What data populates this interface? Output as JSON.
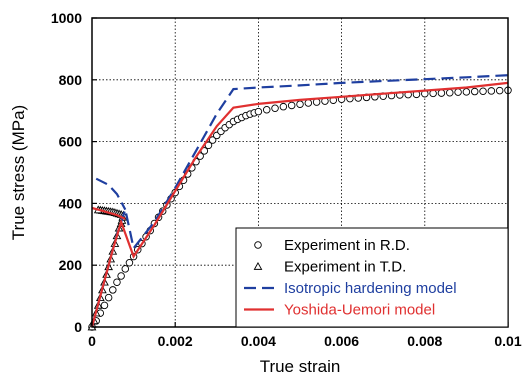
{
  "chart_data": {
    "type": "line",
    "xlabel": "True strain",
    "ylabel": "True stress (MPa)",
    "xlim": [
      0,
      0.01
    ],
    "ylim": [
      0,
      1000
    ],
    "xticks": [
      "0",
      "0.002",
      "0.004",
      "0.006",
      "0.008",
      "0.01"
    ],
    "yticks": [
      "0",
      "200",
      "400",
      "600",
      "800",
      "1000"
    ],
    "grid": "dotted",
    "legend_position": "bottom-right",
    "series": [
      {
        "name": "Experiment in R.D.",
        "style": "circle-markers",
        "color": "#000000",
        "points": [
          [
            0,
            0
          ],
          [
            0.0001,
            20
          ],
          [
            0.0002,
            45
          ],
          [
            0.0003,
            70
          ],
          [
            0.0004,
            95
          ],
          [
            0.0005,
            120
          ],
          [
            0.0006,
            145
          ],
          [
            0.0007,
            165
          ],
          [
            0.0008,
            188
          ],
          [
            0.0009,
            208
          ],
          [
            0.001,
            228
          ],
          [
            0.0011,
            250
          ],
          [
            0.0012,
            270
          ],
          [
            0.0013,
            292
          ],
          [
            0.0014,
            312
          ],
          [
            0.0015,
            335
          ],
          [
            0.0016,
            355
          ],
          [
            0.0017,
            375
          ],
          [
            0.0018,
            395
          ],
          [
            0.0019,
            415
          ],
          [
            0.002,
            435
          ],
          [
            0.0021,
            455
          ],
          [
            0.0022,
            475
          ],
          [
            0.0023,
            495
          ],
          [
            0.0024,
            515
          ],
          [
            0.0025,
            535
          ],
          [
            0.0026,
            553
          ],
          [
            0.0027,
            570
          ],
          [
            0.0028,
            588
          ],
          [
            0.0029,
            605
          ],
          [
            0.003,
            620
          ],
          [
            0.0031,
            633
          ],
          [
            0.0032,
            645
          ],
          [
            0.0033,
            655
          ],
          [
            0.0034,
            665
          ],
          [
            0.0035,
            672
          ],
          [
            0.0036,
            678
          ],
          [
            0.0037,
            684
          ],
          [
            0.0038,
            689
          ],
          [
            0.0039,
            693
          ],
          [
            0.004,
            697
          ],
          [
            0.0042,
            703
          ],
          [
            0.0044,
            708
          ],
          [
            0.0046,
            713
          ],
          [
            0.0048,
            717
          ],
          [
            0.005,
            721
          ],
          [
            0.0052,
            725
          ],
          [
            0.0054,
            728
          ],
          [
            0.0056,
            731
          ],
          [
            0.0058,
            734
          ],
          [
            0.006,
            737
          ],
          [
            0.0062,
            739
          ],
          [
            0.0064,
            741
          ],
          [
            0.0066,
            743
          ],
          [
            0.0068,
            745
          ],
          [
            0.007,
            747
          ],
          [
            0.0072,
            749
          ],
          [
            0.0074,
            751
          ],
          [
            0.0076,
            752
          ],
          [
            0.0078,
            753
          ],
          [
            0.008,
            755
          ],
          [
            0.0082,
            756
          ],
          [
            0.0084,
            757
          ],
          [
            0.0086,
            758
          ],
          [
            0.0088,
            760
          ],
          [
            0.009,
            761
          ],
          [
            0.0092,
            762
          ],
          [
            0.0094,
            763
          ],
          [
            0.0096,
            764
          ],
          [
            0.0098,
            765
          ],
          [
            0.01,
            766
          ]
        ]
      },
      {
        "name": "Experiment in T.D.",
        "style": "triangle-markers",
        "color": "#000000",
        "points": [
          [
            0,
            0
          ],
          [
            5e-05,
            20
          ],
          [
            0.0001,
            45
          ],
          [
            0.00015,
            70
          ],
          [
            0.0002,
            95
          ],
          [
            0.00025,
            120
          ],
          [
            0.0003,
            145
          ],
          [
            0.00035,
            170
          ],
          [
            0.0004,
            195
          ],
          [
            0.00045,
            220
          ],
          [
            0.0005,
            245
          ],
          [
            0.00055,
            270
          ],
          [
            0.0006,
            295
          ],
          [
            0.00065,
            320
          ],
          [
            0.0007,
            335
          ],
          [
            0.00072,
            345
          ],
          [
            0.00074,
            355
          ],
          [
            0.00076,
            362
          ],
          [
            0.0007,
            364
          ],
          [
            0.00065,
            366
          ],
          [
            0.0006,
            368
          ],
          [
            0.00055,
            370
          ],
          [
            0.0005,
            372
          ],
          [
            0.00045,
            373
          ],
          [
            0.0004,
            374
          ],
          [
            0.00035,
            375
          ],
          [
            0.0003,
            376
          ],
          [
            0.00025,
            377
          ],
          [
            0.0002,
            378
          ],
          [
            0.00015,
            379
          ]
        ]
      },
      {
        "name": "Isotropic hardening model",
        "style": "dashed",
        "color": "#1f3fa0",
        "points": [
          [
            0,
            0
          ],
          [
            0.0003,
            150
          ],
          [
            0.0006,
            300
          ],
          [
            0.0008,
            380
          ],
          [
            0.001,
            255
          ],
          [
            0.0015,
            340
          ],
          [
            0.002,
            450
          ],
          [
            0.0025,
            570
          ],
          [
            0.003,
            690
          ],
          [
            0.0034,
            770
          ],
          [
            0.004,
            775
          ],
          [
            0.005,
            782
          ],
          [
            0.006,
            790
          ],
          [
            0.007,
            796
          ],
          [
            0.008,
            802
          ],
          [
            0.009,
            808
          ],
          [
            0.01,
            815
          ]
        ],
        "reverse_branch": [
          [
            0.0001,
            480
          ],
          [
            0.0004,
            460
          ],
          [
            0.0006,
            430
          ],
          [
            0.0008,
            380
          ]
        ]
      },
      {
        "name": "Yoshida-Uemori model",
        "style": "solid",
        "color": "#e03030",
        "points": [
          [
            0,
            0
          ],
          [
            0.0002,
            100
          ],
          [
            0.0005,
            250
          ],
          [
            0.0007,
            340
          ],
          [
            0.001,
            228
          ],
          [
            0.0015,
            330
          ],
          [
            0.002,
            440
          ],
          [
            0.0025,
            550
          ],
          [
            0.003,
            650
          ],
          [
            0.0034,
            710
          ],
          [
            0.004,
            722
          ],
          [
            0.005,
            735
          ],
          [
            0.006,
            745
          ],
          [
            0.007,
            755
          ],
          [
            0.008,
            765
          ],
          [
            0.009,
            775
          ],
          [
            0.01,
            790
          ]
        ],
        "reverse_branch": [
          [
            0,
            385
          ],
          [
            0.0002,
            378
          ],
          [
            0.0004,
            370
          ],
          [
            0.0006,
            362
          ],
          [
            0.0008,
            350
          ]
        ]
      }
    ]
  }
}
